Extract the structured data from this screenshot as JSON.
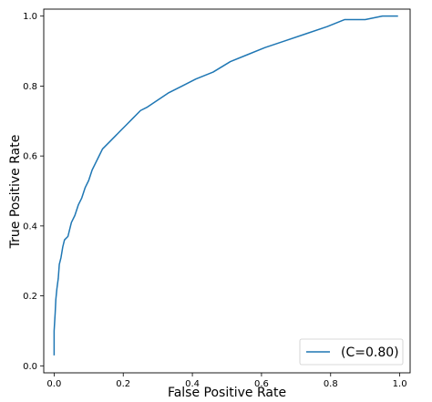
{
  "chart_data": {
    "type": "line",
    "title": "",
    "xlabel": "False Positive Rate",
    "ylabel": "True Positive Rate",
    "xlim": [
      -0.03,
      1.03
    ],
    "ylim": [
      -0.02,
      1.02
    ],
    "xticks": [
      0.0,
      0.2,
      0.4,
      0.6,
      0.8,
      1.0
    ],
    "yticks": [
      0.0,
      0.2,
      0.4,
      0.6,
      0.8,
      1.0
    ],
    "xtick_labels": [
      "0.0",
      "0.2",
      "0.4",
      "0.6",
      "0.8",
      "1.0"
    ],
    "ytick_labels": [
      "0.0",
      "0.2",
      "0.4",
      "0.6",
      "0.8",
      "1.0"
    ],
    "grid": false,
    "legend_position": "bottom-right",
    "series": [
      {
        "name": "(C=0.80)",
        "color": "#1f77b4",
        "x": [
          0.0,
          0.0,
          0.003,
          0.005,
          0.008,
          0.012,
          0.015,
          0.02,
          0.025,
          0.03,
          0.04,
          0.045,
          0.05,
          0.06,
          0.07,
          0.08,
          0.09,
          0.1,
          0.11,
          0.12,
          0.13,
          0.14,
          0.16,
          0.17,
          0.19,
          0.21,
          0.23,
          0.25,
          0.27,
          0.3,
          0.33,
          0.37,
          0.41,
          0.46,
          0.51,
          0.56,
          0.61,
          0.67,
          0.73,
          0.79,
          0.84,
          0.9,
          0.95,
          0.98,
          0.995
        ],
        "y": [
          0.03,
          0.1,
          0.15,
          0.19,
          0.22,
          0.25,
          0.29,
          0.31,
          0.34,
          0.36,
          0.37,
          0.39,
          0.41,
          0.43,
          0.46,
          0.48,
          0.51,
          0.53,
          0.56,
          0.58,
          0.6,
          0.62,
          0.64,
          0.65,
          0.67,
          0.69,
          0.71,
          0.73,
          0.74,
          0.76,
          0.78,
          0.8,
          0.82,
          0.84,
          0.87,
          0.89,
          0.91,
          0.93,
          0.95,
          0.97,
          0.99,
          0.99,
          1.0,
          1.0,
          1.0
        ]
      }
    ]
  }
}
